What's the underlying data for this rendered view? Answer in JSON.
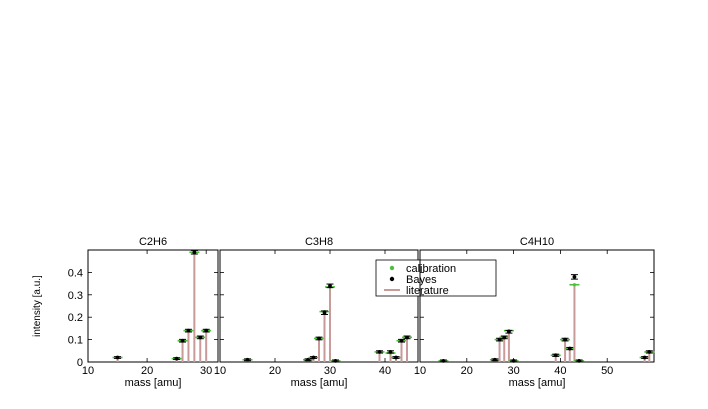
{
  "chart_data": [
    {
      "type": "bar",
      "title": "C2H6",
      "xlabel": "mass [amu]",
      "ylabel": "intensity [a.u.]",
      "xlim": [
        10,
        32
      ],
      "ylim": [
        0,
        0.5
      ],
      "xticks": [
        10,
        20,
        30
      ],
      "yticks": [
        0,
        0.1,
        0.2,
        0.3,
        0.4
      ],
      "legend": null,
      "points": [
        {
          "mass": 15,
          "literature": 0.02,
          "calibration": 0.02,
          "bayes": 0.02,
          "err": 0.004
        },
        {
          "mass": 25,
          "literature": 0.015,
          "calibration": 0.015,
          "bayes": 0.015,
          "err": 0.004
        },
        {
          "mass": 26,
          "literature": 0.095,
          "calibration": 0.095,
          "bayes": 0.095,
          "err": 0.006
        },
        {
          "mass": 27,
          "literature": 0.14,
          "calibration": 0.14,
          "bayes": 0.14,
          "err": 0.006
        },
        {
          "mass": 28,
          "literature": 0.49,
          "calibration": 0.49,
          "bayes": 0.49,
          "err": 0.008
        },
        {
          "mass": 29,
          "literature": 0.11,
          "calibration": 0.11,
          "bayes": 0.11,
          "err": 0.006
        },
        {
          "mass": 30,
          "literature": 0.14,
          "calibration": 0.14,
          "bayes": 0.14,
          "err": 0.006
        }
      ]
    },
    {
      "type": "bar",
      "title": "C3H8",
      "xlabel": "mass [amu]",
      "ylabel": "",
      "xlim": [
        10,
        46
      ],
      "ylim": [
        0,
        0.5
      ],
      "xticks": [
        10,
        20,
        30,
        40
      ],
      "yticks": [
        0,
        0.1,
        0.2,
        0.3,
        0.4
      ],
      "legend": {
        "position": "top-right",
        "entries": [
          {
            "label": "calibration",
            "color": "#4dbf3a"
          },
          {
            "label": "Bayes",
            "color": "#000000"
          },
          {
            "label": "literature",
            "color": "#c89a9a"
          }
        ]
      },
      "points": [
        {
          "mass": 15,
          "literature": 0.01,
          "calibration": 0.01,
          "bayes": 0.01,
          "err": 0.004
        },
        {
          "mass": 26,
          "literature": 0.01,
          "calibration": 0.01,
          "bayes": 0.01,
          "err": 0.004
        },
        {
          "mass": 27,
          "literature": 0.02,
          "calibration": 0.02,
          "bayes": 0.02,
          "err": 0.004
        },
        {
          "mass": 28,
          "literature": 0.105,
          "calibration": 0.105,
          "bayes": 0.105,
          "err": 0.006
        },
        {
          "mass": 29,
          "literature": 0.22,
          "calibration": 0.225,
          "bayes": 0.22,
          "err": 0.008
        },
        {
          "mass": 30,
          "literature": 0.34,
          "calibration": 0.335,
          "bayes": 0.34,
          "err": 0.008
        },
        {
          "mass": 31,
          "literature": 0.005,
          "calibration": 0.005,
          "bayes": 0.005,
          "err": 0.004
        },
        {
          "mass": 39,
          "literature": 0.045,
          "calibration": 0.045,
          "bayes": 0.045,
          "err": 0.005
        },
        {
          "mass": 41,
          "literature": 0.045,
          "calibration": 0.04,
          "bayes": 0.045,
          "err": 0.005
        },
        {
          "mass": 42,
          "literature": 0.02,
          "calibration": 0.02,
          "bayes": 0.02,
          "err": 0.004
        },
        {
          "mass": 43,
          "literature": 0.095,
          "calibration": 0.095,
          "bayes": 0.095,
          "err": 0.006
        },
        {
          "mass": 44,
          "literature": 0.11,
          "calibration": 0.11,
          "bayes": 0.11,
          "err": 0.006
        }
      ]
    },
    {
      "type": "bar",
      "title": "C4H10",
      "xlabel": "mass [amu]",
      "ylabel": "",
      "xlim": [
        10,
        60
      ],
      "ylim": [
        0,
        0.5
      ],
      "xticks": [
        10,
        20,
        30,
        40,
        50
      ],
      "yticks": [
        0,
        0.1,
        0.2,
        0.3,
        0.4
      ],
      "legend": null,
      "points": [
        {
          "mass": 15,
          "literature": 0.005,
          "calibration": 0.005,
          "bayes": 0.005,
          "err": 0.004
        },
        {
          "mass": 26,
          "literature": 0.01,
          "calibration": 0.01,
          "bayes": 0.01,
          "err": 0.004
        },
        {
          "mass": 27,
          "literature": 0.1,
          "calibration": 0.1,
          "bayes": 0.1,
          "err": 0.006
        },
        {
          "mass": 28,
          "literature": 0.11,
          "calibration": 0.11,
          "bayes": 0.11,
          "err": 0.006
        },
        {
          "mass": 29,
          "literature": 0.135,
          "calibration": 0.14,
          "bayes": 0.135,
          "err": 0.006
        },
        {
          "mass": 30,
          "literature": 0.005,
          "calibration": 0.005,
          "bayes": 0.005,
          "err": 0.004
        },
        {
          "mass": 39,
          "literature": 0.03,
          "calibration": 0.03,
          "bayes": 0.03,
          "err": 0.005
        },
        {
          "mass": 41,
          "literature": 0.1,
          "calibration": 0.1,
          "bayes": 0.1,
          "err": 0.006
        },
        {
          "mass": 42,
          "literature": 0.06,
          "calibration": 0.06,
          "bayes": 0.06,
          "err": 0.005
        },
        {
          "mass": 43,
          "literature": 0.35,
          "calibration": 0.345,
          "bayes": 0.38,
          "err": 0.01
        },
        {
          "mass": 44,
          "literature": 0.005,
          "calibration": 0.005,
          "bayes": 0.005,
          "err": 0.004
        },
        {
          "mass": 58,
          "literature": 0.02,
          "calibration": 0.02,
          "bayes": 0.02,
          "err": 0.004
        },
        {
          "mass": 59,
          "literature": 0.045,
          "calibration": 0.045,
          "bayes": 0.045,
          "err": 0.005
        }
      ]
    }
  ]
}
